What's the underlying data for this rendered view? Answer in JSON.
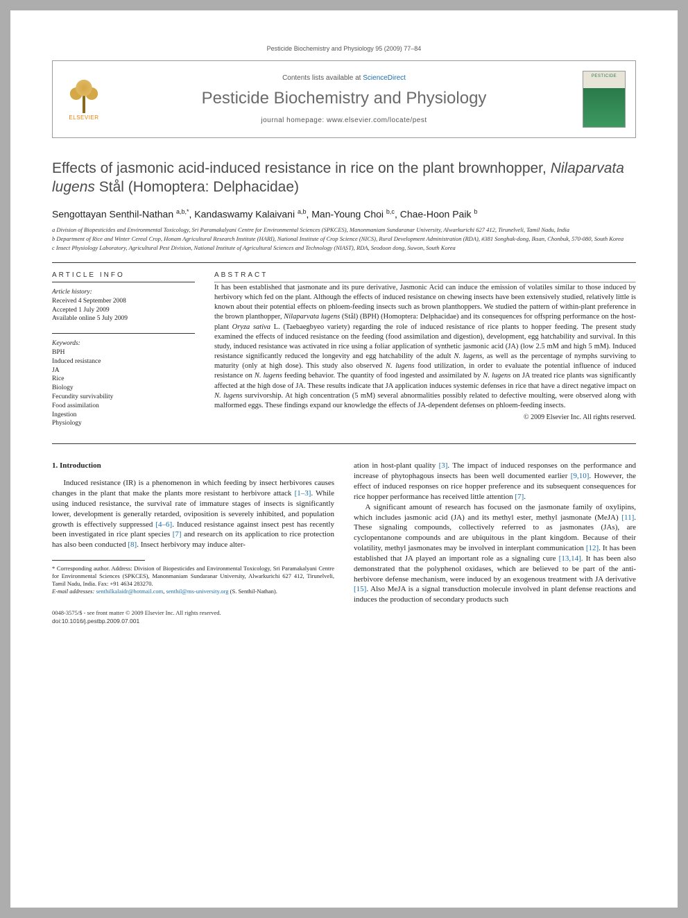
{
  "running_header": "Pesticide Biochemistry and Physiology 95 (2009) 77–84",
  "header": {
    "contents_prefix": "Contents lists available at ",
    "contents_link": "ScienceDirect",
    "journal_title": "Pesticide Biochemistry and Physiology",
    "homepage_prefix": "journal homepage: ",
    "homepage_url": "www.elsevier.com/locate/pest",
    "elsevier_label": "ELSEVIER",
    "cover_label": "PESTICIDE"
  },
  "title_parts": {
    "pre": "Effects of jasmonic acid-induced resistance in rice on the plant brownhopper, ",
    "species": "Nilaparvata lugens",
    "post": " Stål (Homoptera: Delphacidae)"
  },
  "authors_html": "Sengottayan Senthil-Nathan <sup>a,b,*</sup>, Kandaswamy Kalaivani <sup>a,b</sup>, Man-Young Choi <sup>b,c</sup>, Chae-Hoon Paik <sup>b</sup>",
  "affiliations": [
    "a Division of Biopesticides and Environmental Toxicology, Sri Paramakalyani Centre for Environmental Sciences (SPKCES), Manonmaniam Sundaranar University, Alwarkurichi 627 412, Tirunelveli, Tamil Nadu, India",
    "b Department of Rice and Winter Cereal Crop, Honam Agricultural Research Institute (HARI), National Institute of Crop Science (NICS), Rural Development Administration (RDA), #381 Songhak-dong, Iksan, Chonbuk, 570-080, South Korea",
    "c Insect Physiology Laboratory, Agricultural Pest Division, National Institute of Agricultural Sciences and Technology (NIAST), RDA, Seodoon dong, Suwon, South Korea"
  ],
  "article_info": {
    "heading": "ARTICLE INFO",
    "history_label": "Article history:",
    "history": [
      "Received 4 September 2008",
      "Accepted 1 July 2009",
      "Available online 5 July 2009"
    ],
    "keywords_label": "Keywords:",
    "keywords": [
      "BPH",
      "Induced resistance",
      "JA",
      "Rice",
      "Biology",
      "Fecundity survivability",
      "Food assimilation",
      "Ingestion",
      "Physiology"
    ]
  },
  "abstract": {
    "heading": "ABSTRACT",
    "text_html": "It has been established that jasmonate and its pure derivative, Jasmonic Acid can induce the emission of volatiles similar to those induced by herbivory which fed on the plant. Although the effects of induced resistance on chewing insects have been extensively studied, relatively little is known about their potential effects on phloem-feeding insects such as brown planthoppers. We studied the pattern of within-plant preference in the brown planthopper, <span class=\"species\">Nilaparvata lugens</span> (Stål) (BPH) (Homoptera: Delphacidae) and its consequences for offspring performance on the host-plant <span class=\"species\">Oryza sativa</span> L. (Taebaegbyeo variety) regarding the role of induced resistance of rice plants to hopper feeding. The present study examined the effects of induced resistance on the feeding (food assimilation and digestion), development, egg hatchability and survival. In this study, induced resistance was activated in rice using a foliar application of synthetic jasmonic acid (JA) (low 2.5 mM and high 5 mM). Induced resistance significantly reduced the longevity and egg hatchability of the adult <span class=\"species\">N. lugens</span>, as well as the percentage of nymphs surviving to maturity (only at high dose). This study also observed <span class=\"species\">N. lugens</span> food utilization, in order to evaluate the potential influence of induced resistance on <span class=\"species\">N. lugens</span> feeding behavior. The quantity of food ingested and assimilated by <span class=\"species\">N. lugens</span> on JA treated rice plants was significantly affected at the high dose of JA. These results indicate that JA application induces systemic defenses in rice that have a direct negative impact on <span class=\"species\">N. lugens</span> survivorship. At high concentration (5 mM) several abnormalities possibly related to defective moulting, were observed along with malformed eggs. These findings expand our knowledge the effects of JA-dependent defenses on phloem-feeding insects.",
    "copyright": "© 2009 Elsevier Inc. All rights reserved."
  },
  "body": {
    "section1_heading": "1. Introduction",
    "col1_html": "Induced resistance (IR) is a phenomenon in which feeding by insect herbivores causes changes in the plant that make the plants more resistant to herbivore attack <a class=\"ref\">[1–3]</a>. While using induced resistance, the survival rate of immature stages of insects is significantly lower, development is generally retarded, oviposition is severely inhibited, and population growth is effectively suppressed <a class=\"ref\">[4–6]</a>. Induced resistance against insect pest has recently been investigated in rice plant species <a class=\"ref\">[7]</a> and research on its application to rice protection has also been conducted <a class=\"ref\">[8]</a>. Insect herbivory may induce alter-",
    "col2_p1_html": "ation in host-plant quality <a class=\"ref\">[3]</a>. The impact of induced responses on the performance and increase of phytophagous insects has been well documented earlier <a class=\"ref\">[9,10]</a>. However, the effect of induced responses on rice hopper preference and its subsequent consequences for rice hopper performance has received little attention <a class=\"ref\">[7]</a>.",
    "col2_p2_html": "A significant amount of research has focused on the jasmonate family of oxylipins, which includes jasmonic acid (JA) and its methyl ester, methyl jasmonate (MeJA) <a class=\"ref\">[11]</a>. These signaling compounds, collectively referred to as jasmonates (JAs), are cyclopentanone compounds and are ubiquitous in the plant kingdom. Because of their volatility, methyl jasmonates may be involved in interplant communication <a class=\"ref\">[12]</a>. It has been established that JA played an important role as a signaling cure <a class=\"ref\">[13,14]</a>. It has been also demonstrated that the polyphenol oxidases, which are believed to be part of the anti-herbivore defense mechanism, were induced by an exogenous treatment with JA derivative <a class=\"ref\">[15]</a>. Also MeJA is a signal transduction molecule involved in plant defense reactions and induces the production of secondary products such"
  },
  "footnotes": {
    "corresponding_html": "* Corresponding author. Address: Division of Biopesticides and Environmental Toxicology, Sri Paramakalyani Centre for Environmental Sciences (SPKCES), Manonmaniam Sundaranar University, Alwarkurichi 627 412, Tirunelveli, Tamil Nadu, India. Fax: +91 4634 283270.",
    "email_label": "E-mail addresses: ",
    "email1": "senthilkalaidr@hotmail.com",
    "email_sep": ", ",
    "email2": "senthil@ms-university.org",
    "email_tail": " (S. Senthil-Nathan)."
  },
  "footer": {
    "issn_line": "0048-3575/$ - see front matter © 2009 Elsevier Inc. All rights reserved.",
    "doi_line": "doi:10.1016/j.pestbp.2009.07.001"
  },
  "colors": {
    "page_bg": "#adadad",
    "link": "#1b6da8",
    "heading_gray": "#6b6b6b",
    "elsevier_orange": "#e8830c"
  }
}
